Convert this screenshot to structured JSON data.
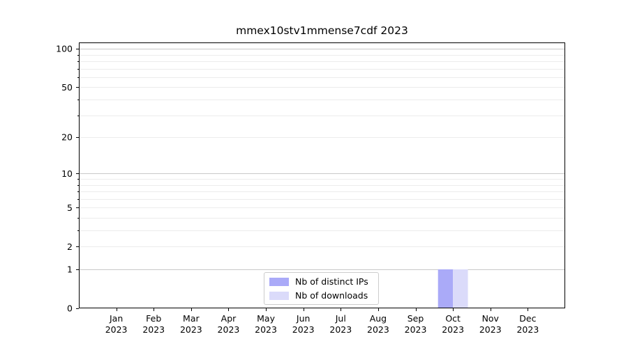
{
  "chart_data": {
    "type": "bar",
    "title": "mmex10stv1mmense7cdf 2023",
    "months": [
      "Jan",
      "Feb",
      "Mar",
      "Apr",
      "May",
      "Jun",
      "Jul",
      "Aug",
      "Sep",
      "Oct",
      "Nov",
      "Dec"
    ],
    "year_label": "2023",
    "series": [
      {
        "name": "Nb of distinct IPs",
        "color": "#aaaaf8",
        "values": [
          0,
          0,
          0,
          0,
          0,
          0,
          0,
          0,
          0,
          1,
          0,
          0
        ]
      },
      {
        "name": "Nb of downloads",
        "color": "#dbdbfa",
        "values": [
          0,
          0,
          0,
          0,
          0,
          0,
          0,
          0,
          0,
          1,
          0,
          0
        ]
      }
    ],
    "y_scale": "log1p",
    "y_ticks": [
      0,
      1,
      2,
      5,
      10,
      20,
      50,
      100
    ],
    "y_major_gridlines": [
      1,
      10,
      100
    ],
    "ylim": [
      0,
      112
    ],
    "grid": "horizontal major+minor",
    "legend_position": "lower center",
    "colors": {
      "major_grid": "#c8c8c8",
      "minor_grid": "#ececec",
      "axis": "#000000",
      "text": "#000000",
      "background": "#ffffff"
    }
  }
}
